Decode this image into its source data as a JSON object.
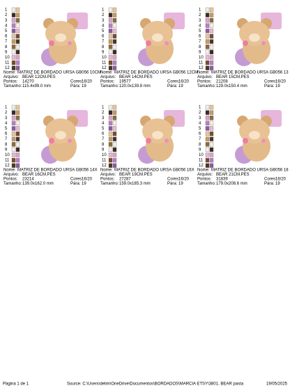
{
  "labels": {
    "nome": "Nome:",
    "arquivo": "Arquivo:",
    "pontos": "Pontos:",
    "cores": "Cores:",
    "tamanho": "Tamanho:",
    "para": "Pára:"
  },
  "thread_numbers": [
    "1",
    "2",
    "3",
    "4",
    "5",
    "6",
    "7",
    "8",
    "9",
    "10",
    "11",
    "12"
  ],
  "designs": [
    {
      "nome": "MATRIZ DE BORDADO URSA GB056 10CM",
      "arquivo": "BEAR 12CM.PES",
      "pontos": "14270",
      "cores": "16/20",
      "tamanho": "115.4x99.0 mm",
      "para": "19"
    },
    {
      "nome": "MATRIZ DE BORDADO URSA GB056 12CM",
      "arquivo": "BEAR 14CM.PES",
      "pontos": "19577",
      "cores": "16/20",
      "tamanho": "120.0x139.8 mm",
      "para": "19"
    },
    {
      "nome": "MATRIZ DE BORDADO URSA GB056 13",
      "arquivo": "BEAR 15CM.PES",
      "pontos": "21208",
      "cores": "16/20",
      "tamanho": "129.0x150.4 mm",
      "para": "19"
    },
    {
      "nome": "MATRIZ DE BORDADO URSA GB056 14X",
      "arquivo": "BEAR 16CM.PES",
      "pontos": "23214",
      "cores": "16/20",
      "tamanho": "139.0x162.0 mm",
      "para": "19"
    },
    {
      "nome": "MATRIZ DE BORDADO URSA GB056 16X",
      "arquivo": "BEAR 19CM.PES",
      "pontos": "27287",
      "cores": "16/20",
      "tamanho": "159.0x185.3 mm",
      "para": "19"
    },
    {
      "nome": "MATRIZ DE BORDADO URSA GB056 18",
      "arquivo": "BEAR 21CM.PES",
      "pontos": "31839",
      "cores": "16/20",
      "tamanho": "179.0x208.6 mm",
      "para": "19"
    }
  ],
  "footer": {
    "page": "Página 1 de 1",
    "source": "Source: C:\\Users\\delim\\OneDrive\\Documentos\\BORDADOS\\MARCIA ETSY\\3801. BEAR pasta",
    "date": "19/05/2025"
  }
}
